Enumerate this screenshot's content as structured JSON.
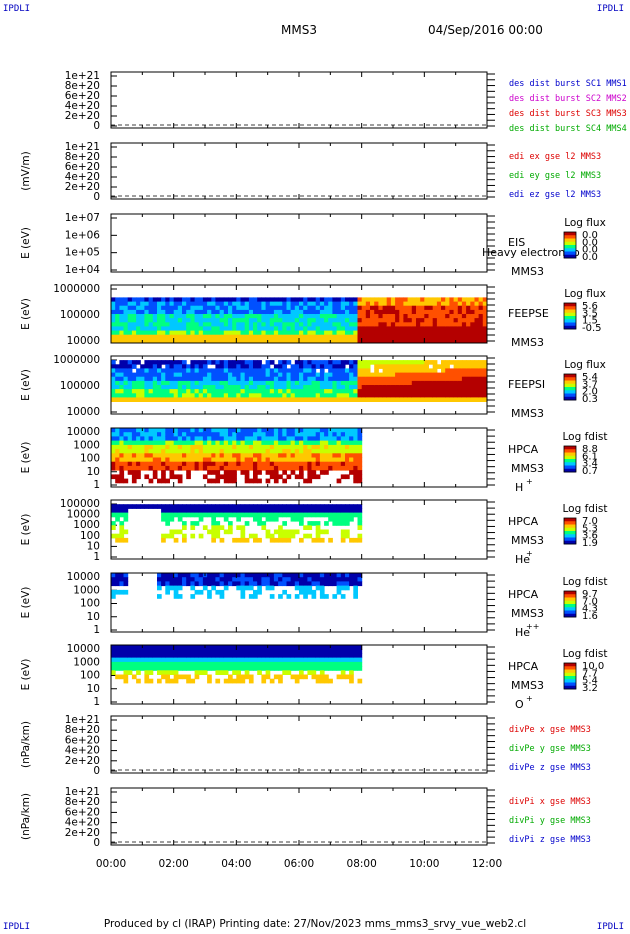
{
  "corner_labels": {
    "tl": "IPDLI",
    "tr": "IPDLI",
    "bl": "IPDLI",
    "br": "IPDLI"
  },
  "header": {
    "spacecraft": "MMS3",
    "date": "04/Sep/2016 00:00"
  },
  "footer": "Produced by cl (IRAP)   Printing date: 27/Nov/2023   mms_mms3_srvy_vue_web2.cl",
  "x_axis": {
    "range": [
      "00:00",
      "12:00"
    ],
    "ticks": [
      "00:00",
      "02:00",
      "04:00",
      "06:00",
      "08:00",
      "10:00",
      "12:00"
    ]
  },
  "colors": {
    "spectrogram_palette": [
      "#ffffff",
      "#0000aa",
      "#0050ff",
      "#00c8ff",
      "#00ff80",
      "#c8ff00",
      "#ffc800",
      "#ff5000",
      "#b40000"
    ]
  },
  "chart_data": [
    {
      "type": "line",
      "ylabel": "",
      "yticks": [
        "1e+21",
        "8e+20",
        "6e+20",
        "4e+20",
        "2e+20",
        "0"
      ],
      "ylim": [
        0,
        1e+21
      ],
      "series": [
        {
          "name": "des dist burst SC1 MMS1",
          "color": "#0000cc"
        },
        {
          "name": "des dist burst SC2 MMS2",
          "color": "#cc00cc"
        },
        {
          "name": "des dist burst SC3 MMS3",
          "color": "#dd0000"
        },
        {
          "name": "des dist burst SC4 MMS4",
          "color": "#00aa00"
        }
      ]
    },
    {
      "type": "line",
      "ylabel": "(mV/m)",
      "yticks": [
        "1e+21",
        "8e+20",
        "6e+20",
        "4e+20",
        "2e+20",
        "0"
      ],
      "ylim": [
        0,
        1e+21
      ],
      "series": [
        {
          "name": "edi ex gse l2 MMS3",
          "color": "#dd0000"
        },
        {
          "name": "edi ey gse l2 MMS3",
          "color": "#00aa00"
        },
        {
          "name": "edi ez gse l2 MMS3",
          "color": "#0000cc"
        }
      ]
    },
    {
      "type": "heatmap",
      "ylabel": "E (eV)",
      "yticks": [
        "1e+07",
        "1e+06",
        "1e+05",
        "1e+04"
      ],
      "ylim": [
        10000,
        10000000
      ],
      "log_y": true,
      "instrument": "EIS",
      "spacecraft": "MMS3",
      "overlay_text": "Heavy electron to",
      "colorbar": {
        "title": "Log flux",
        "ticks": [
          "0.0",
          "0.0",
          "0.0",
          "0.0"
        ]
      },
      "data_end_hour": 0
    },
    {
      "type": "heatmap",
      "ylabel": "E (eV)",
      "yticks": [
        "1000000",
        "100000",
        "10000"
      ],
      "ylim": [
        10000,
        1000000
      ],
      "log_y": true,
      "instrument": "FEEPSE",
      "spacecraft": "MMS3",
      "colorbar": {
        "title": "Log flux",
        "ticks": [
          "5.6",
          "3.5",
          "1.5",
          "-0.5"
        ]
      },
      "data_end_hour": 12
    },
    {
      "type": "heatmap",
      "ylabel": "E (eV)",
      "yticks": [
        "1000000",
        "100000",
        "10000"
      ],
      "ylim": [
        10000,
        1000000
      ],
      "log_y": true,
      "instrument": "FEEPSI",
      "spacecraft": "MMS3",
      "colorbar": {
        "title": "Log flux",
        "ticks": [
          "5.4",
          "3.7",
          "2.0",
          "0.3"
        ]
      },
      "data_end_hour": 12
    },
    {
      "type": "heatmap",
      "ylabel": "E (eV)",
      "yticks": [
        "10000",
        "1000",
        "100",
        "10",
        "1"
      ],
      "ylim": [
        1,
        30000
      ],
      "log_y": true,
      "instrument": "HPCA",
      "spacecraft": "MMS3",
      "species": "H",
      "charge": "+",
      "colorbar": {
        "title": "Log fdist",
        "ticks": [
          "8.8",
          "6.1",
          "3.4",
          "0.7"
        ]
      },
      "data_end_hour": 8
    },
    {
      "type": "heatmap",
      "ylabel": "E (eV)",
      "yticks": [
        "100000",
        "10000",
        "1000",
        "100",
        "10",
        "1"
      ],
      "ylim": [
        1,
        100000
      ],
      "log_y": true,
      "instrument": "HPCA",
      "spacecraft": "MMS3",
      "species": "He",
      "charge": "+",
      "colorbar": {
        "title": "Log fdist",
        "ticks": [
          "7.0",
          "5.3",
          "3.6",
          "1.9"
        ]
      },
      "data_end_hour": 8
    },
    {
      "type": "heatmap",
      "ylabel": "E (eV)",
      "yticks": [
        "10000",
        "1000",
        "100",
        "10",
        "1"
      ],
      "ylim": [
        1,
        30000
      ],
      "log_y": true,
      "instrument": "HPCA",
      "spacecraft": "MMS3",
      "species": "He",
      "charge": "++",
      "colorbar": {
        "title": "Log fdist",
        "ticks": [
          "9.7",
          "7.0",
          "4.3",
          "1.6"
        ]
      },
      "data_end_hour": 8
    },
    {
      "type": "heatmap",
      "ylabel": "E (eV)",
      "yticks": [
        "10000",
        "1000",
        "100",
        "10",
        "1"
      ],
      "ylim": [
        1,
        30000
      ],
      "log_y": true,
      "instrument": "HPCA",
      "spacecraft": "MMS3",
      "species": "O",
      "charge": "+",
      "colorbar": {
        "title": "Log fdist",
        "ticks": [
          "10.0",
          "7.7",
          "5.4",
          "3.2"
        ]
      },
      "data_end_hour": 8
    },
    {
      "type": "line",
      "ylabel": "(nPa/km)",
      "yticks": [
        "1e+21",
        "8e+20",
        "6e+20",
        "4e+20",
        "2e+20",
        "0"
      ],
      "ylim": [
        0,
        1e+21
      ],
      "series": [
        {
          "name": "divPe x gse MMS3",
          "color": "#dd0000"
        },
        {
          "name": "divPe y gse MMS3",
          "color": "#00aa00"
        },
        {
          "name": "divPe z gse MMS3",
          "color": "#0000cc"
        }
      ]
    },
    {
      "type": "line",
      "ylabel": "(nPa/km)",
      "yticks": [
        "1e+21",
        "8e+20",
        "6e+20",
        "4e+20",
        "2e+20",
        "0"
      ],
      "ylim": [
        0,
        1e+21
      ],
      "series": [
        {
          "name": "divPi x gse MMS3",
          "color": "#dd0000"
        },
        {
          "name": "divPi y gse MMS3",
          "color": "#00aa00"
        },
        {
          "name": "divPi z gse MMS3",
          "color": "#0000cc"
        }
      ]
    }
  ]
}
